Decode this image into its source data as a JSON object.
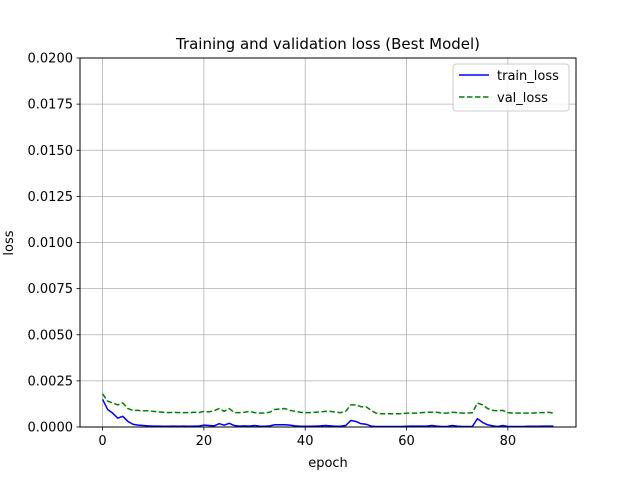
{
  "chart_data": {
    "type": "line",
    "title": "Training and validation loss (Best Model)",
    "xlabel": "epoch",
    "ylabel": "loss",
    "xlim": [
      -4.45,
      93.45
    ],
    "ylim": [
      0,
      0.02
    ],
    "xticks": [
      0,
      20,
      40,
      60,
      80
    ],
    "xtick_labels": [
      "0",
      "20",
      "40",
      "60",
      "80"
    ],
    "yticks": [
      0,
      0.0025,
      0.005,
      0.0075,
      0.01,
      0.0125,
      0.015,
      0.0175,
      0.02
    ],
    "ytick_labels": [
      "0.0000",
      "0.0025",
      "0.0050",
      "0.0075",
      "0.0100",
      "0.0125",
      "0.0150",
      "0.0175",
      "0.0200"
    ],
    "grid": true,
    "legend_position": "top-right",
    "series": [
      {
        "name": "train_loss",
        "color": "#0000ff",
        "dash": "solid",
        "x": [
          0,
          1,
          2,
          3,
          4,
          5,
          6,
          7,
          8,
          9,
          10,
          11,
          12,
          13,
          14,
          15,
          16,
          17,
          18,
          19,
          20,
          21,
          22,
          23,
          24,
          25,
          26,
          27,
          28,
          29,
          30,
          31,
          32,
          33,
          34,
          35,
          36,
          37,
          38,
          39,
          40,
          41,
          42,
          43,
          44,
          45,
          46,
          47,
          48,
          49,
          50,
          51,
          52,
          53,
          54,
          55,
          56,
          57,
          58,
          59,
          60,
          61,
          62,
          63,
          64,
          65,
          66,
          67,
          68,
          69,
          70,
          71,
          72,
          73,
          74,
          75,
          76,
          77,
          78,
          79,
          80,
          81,
          82,
          83,
          84,
          85,
          86,
          87,
          88,
          89
        ],
        "values": [
          0.0015,
          0.00095,
          0.00075,
          0.00048,
          0.00058,
          0.0003,
          0.00015,
          0.0001,
          8e-05,
          6e-05,
          5e-05,
          5e-05,
          4e-05,
          4e-05,
          5e-05,
          4e-05,
          5e-05,
          4e-05,
          5e-05,
          5e-05,
          0.0001,
          8e-05,
          6e-05,
          0.00018,
          0.0001,
          0.0002,
          8e-05,
          5e-05,
          6e-05,
          5e-05,
          8e-05,
          5e-05,
          4e-05,
          6e-05,
          0.00012,
          0.00012,
          0.00012,
          0.0001,
          6e-05,
          4e-05,
          4e-05,
          4e-05,
          5e-05,
          6e-05,
          8e-05,
          6e-05,
          4e-05,
          5e-05,
          8e-05,
          0.00035,
          0.0003,
          0.00018,
          0.00015,
          5e-05,
          3e-05,
          3e-05,
          3e-05,
          3e-05,
          3e-05,
          3e-05,
          4e-05,
          5e-05,
          5e-05,
          5e-05,
          5e-05,
          8e-05,
          5e-05,
          3e-05,
          3e-05,
          8e-05,
          5e-05,
          3e-05,
          3e-05,
          3e-05,
          0.00045,
          0.00025,
          0.00012,
          6e-05,
          3e-05,
          8e-05,
          3e-05,
          3e-05,
          3e-05,
          3e-05,
          4e-05,
          4e-05,
          4e-05,
          5e-05,
          5e-05,
          5e-05
        ]
      },
      {
        "name": "val_loss",
        "color": "#008000",
        "dash": "dashed",
        "x": [
          0,
          1,
          2,
          3,
          4,
          5,
          6,
          7,
          8,
          9,
          10,
          11,
          12,
          13,
          14,
          15,
          16,
          17,
          18,
          19,
          20,
          21,
          22,
          23,
          24,
          25,
          26,
          27,
          28,
          29,
          30,
          31,
          32,
          33,
          34,
          35,
          36,
          37,
          38,
          39,
          40,
          41,
          42,
          43,
          44,
          45,
          46,
          47,
          48,
          49,
          50,
          51,
          52,
          53,
          54,
          55,
          56,
          57,
          58,
          59,
          60,
          61,
          62,
          63,
          64,
          65,
          66,
          67,
          68,
          69,
          70,
          71,
          72,
          73,
          74,
          75,
          76,
          77,
          78,
          79,
          80,
          81,
          82,
          83,
          84,
          85,
          86,
          87,
          88,
          89
        ],
        "values": [
          0.0018,
          0.0014,
          0.0013,
          0.0012,
          0.0013,
          0.001,
          0.0009,
          0.0009,
          0.00088,
          0.00088,
          0.00085,
          0.00082,
          0.0008,
          0.00078,
          0.0008,
          0.00078,
          0.00078,
          0.00078,
          0.0008,
          0.00078,
          0.00085,
          0.00082,
          0.00088,
          0.001,
          0.00085,
          0.001,
          0.00078,
          0.00078,
          0.0008,
          0.00085,
          0.00078,
          0.00075,
          0.00075,
          0.0008,
          0.00095,
          0.00098,
          0.001,
          0.0009,
          0.00085,
          0.0008,
          0.00078,
          0.00078,
          0.0008,
          0.00082,
          0.00085,
          0.00085,
          0.0008,
          0.00078,
          0.00085,
          0.0012,
          0.0012,
          0.0011,
          0.0011,
          0.0009,
          0.00075,
          0.00072,
          0.00072,
          0.00072,
          0.00072,
          0.00072,
          0.00075,
          0.00075,
          0.00075,
          0.00078,
          0.0008,
          0.0008,
          0.0008,
          0.00075,
          0.00075,
          0.0008,
          0.00078,
          0.00075,
          0.00075,
          0.00078,
          0.0013,
          0.0012,
          0.001,
          0.0009,
          0.00088,
          0.0009,
          0.00078,
          0.00075,
          0.00075,
          0.00075,
          0.00075,
          0.00075,
          0.00078,
          0.00078,
          0.0008,
          0.00075
        ]
      }
    ]
  }
}
